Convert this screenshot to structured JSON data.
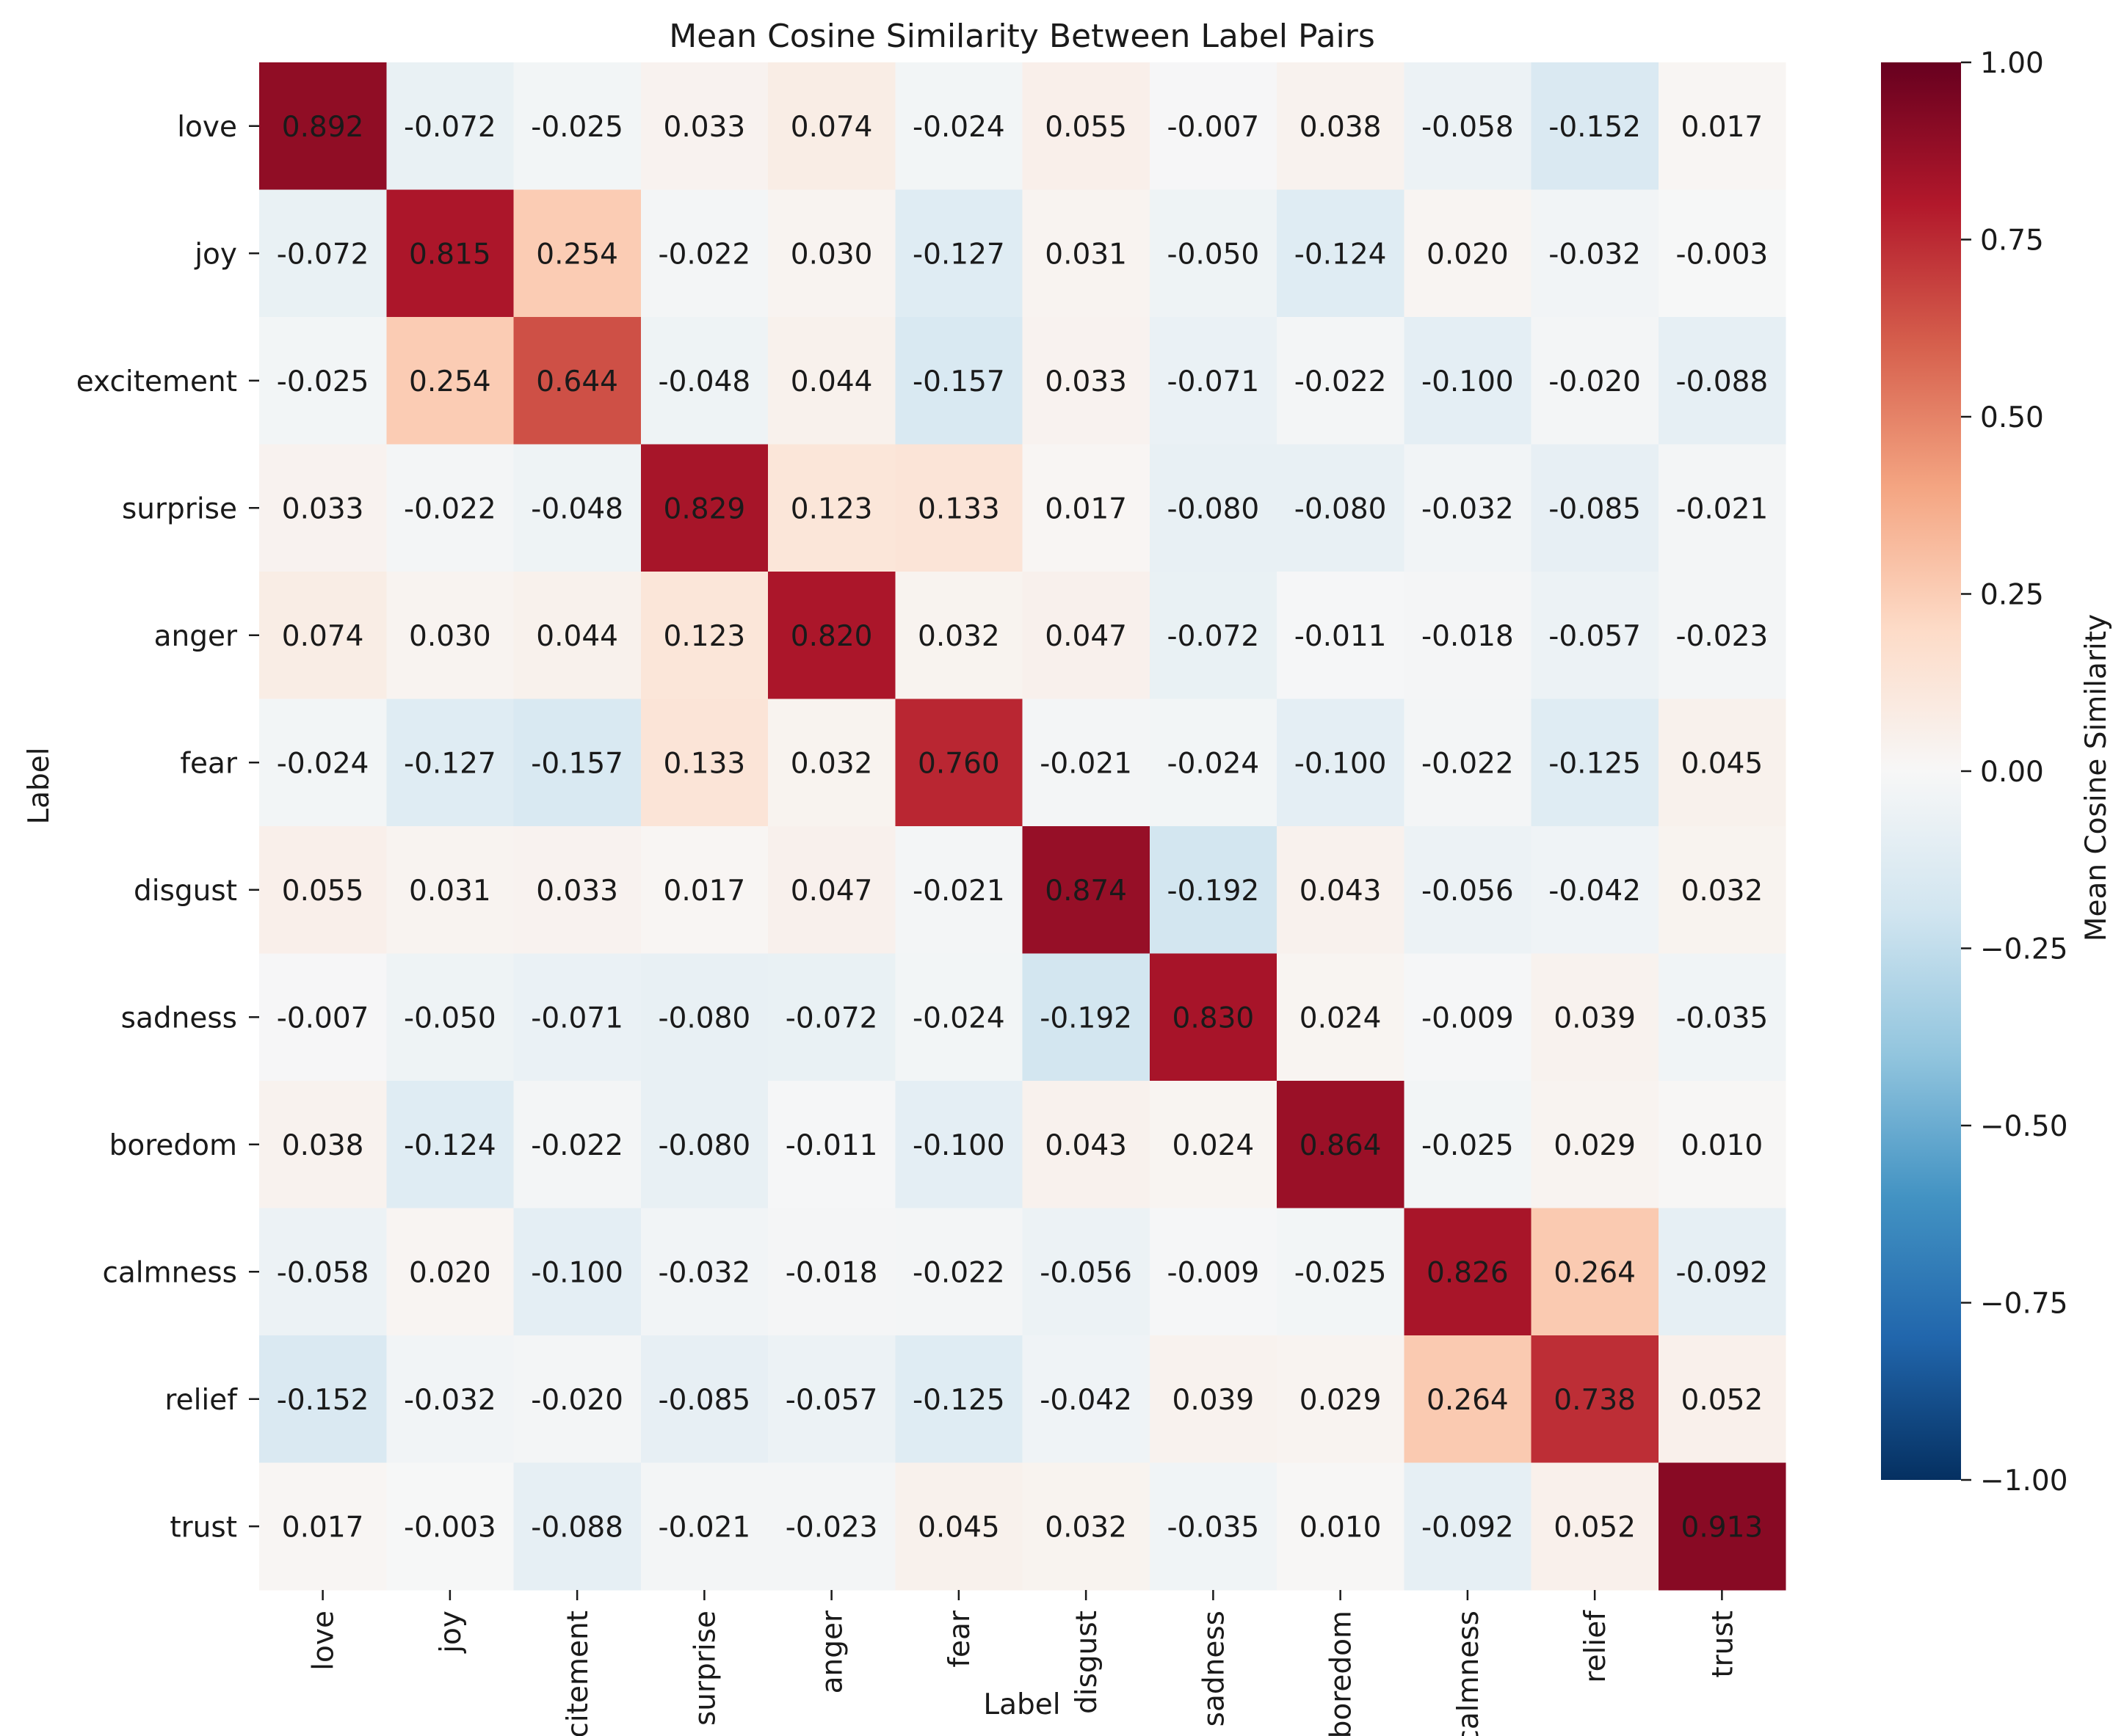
{
  "chart_data": {
    "type": "heatmap",
    "title": "Mean Cosine Similarity Between Label Pairs",
    "xlabel": "Label",
    "ylabel": "Label",
    "labels": [
      "love",
      "joy",
      "excitement",
      "surprise",
      "anger",
      "fear",
      "disgust",
      "sadness",
      "boredom",
      "calmness",
      "relief",
      "trust"
    ],
    "matrix": [
      [
        0.892,
        -0.072,
        -0.025,
        0.033,
        0.074,
        -0.024,
        0.055,
        -0.007,
        0.038,
        -0.058,
        -0.152,
        0.017
      ],
      [
        -0.072,
        0.815,
        0.254,
        -0.022,
        0.03,
        -0.127,
        0.031,
        -0.05,
        -0.124,
        0.02,
        -0.032,
        -0.003
      ],
      [
        -0.025,
        0.254,
        0.644,
        -0.048,
        0.044,
        -0.157,
        0.033,
        -0.071,
        -0.022,
        -0.1,
        -0.02,
        -0.088
      ],
      [
        0.033,
        -0.022,
        -0.048,
        0.829,
        0.123,
        0.133,
        0.017,
        -0.08,
        -0.08,
        -0.032,
        -0.085,
        -0.021
      ],
      [
        0.074,
        0.03,
        0.044,
        0.123,
        0.82,
        0.032,
        0.047,
        -0.072,
        -0.011,
        -0.018,
        -0.057,
        -0.023
      ],
      [
        -0.024,
        -0.127,
        -0.157,
        0.133,
        0.032,
        0.76,
        -0.021,
        -0.024,
        -0.1,
        -0.022,
        -0.125,
        0.045
      ],
      [
        0.055,
        0.031,
        0.033,
        0.017,
        0.047,
        -0.021,
        0.874,
        -0.192,
        0.043,
        -0.056,
        -0.042,
        0.032
      ],
      [
        -0.007,
        -0.05,
        -0.071,
        -0.08,
        -0.072,
        -0.024,
        -0.192,
        0.83,
        0.024,
        -0.009,
        0.039,
        -0.035
      ],
      [
        0.038,
        -0.124,
        -0.022,
        -0.08,
        -0.011,
        -0.1,
        0.043,
        0.024,
        0.864,
        -0.025,
        0.029,
        0.01
      ],
      [
        -0.058,
        0.02,
        -0.1,
        -0.032,
        -0.018,
        -0.022,
        -0.056,
        -0.009,
        -0.025,
        0.826,
        0.264,
        -0.092
      ],
      [
        -0.152,
        -0.032,
        -0.02,
        -0.085,
        -0.057,
        -0.125,
        -0.042,
        0.039,
        0.029,
        0.264,
        0.738,
        0.052
      ],
      [
        0.017,
        -0.003,
        -0.088,
        -0.021,
        -0.023,
        0.045,
        0.032,
        -0.035,
        0.01,
        -0.092,
        0.052,
        0.913
      ]
    ],
    "colorbar": {
      "label": "Mean Cosine Similarity",
      "vmin": -1.0,
      "vmax": 1.0,
      "ticks": [
        1.0,
        0.75,
        0.5,
        0.25,
        0.0,
        -0.25,
        -0.5,
        -0.75,
        -1.0
      ],
      "tick_labels": [
        "1.00",
        "0.75",
        "0.50",
        "0.25",
        "0.00",
        "−0.25",
        "−0.50",
        "−0.75",
        "−1.00"
      ],
      "colormap": "RdBu_r",
      "stops": [
        "#053061",
        "#2166ac",
        "#4393c3",
        "#92c5de",
        "#d1e5f0",
        "#f7f7f7",
        "#fddbc7",
        "#f4a582",
        "#d6604d",
        "#b2182b",
        "#67001f"
      ]
    },
    "grid": false
  }
}
